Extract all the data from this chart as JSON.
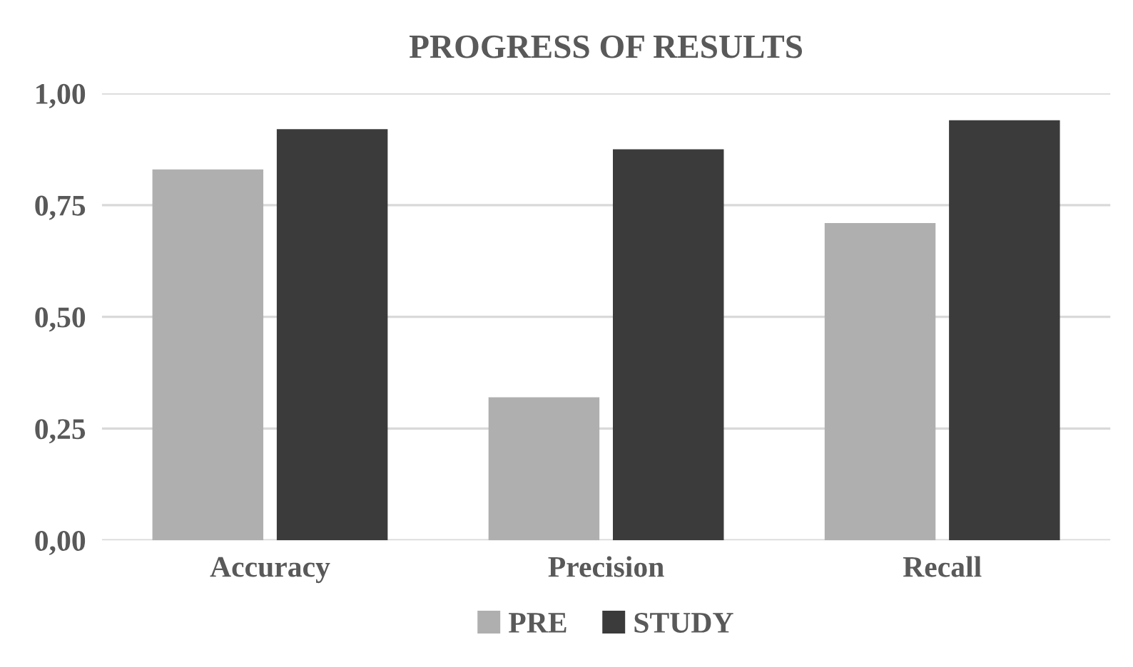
{
  "chart_data": {
    "type": "bar",
    "title": "PROGRESS OF RESULTS",
    "categories": [
      "Accuracy",
      "Precision",
      "Recall"
    ],
    "series": [
      {
        "name": "PRE",
        "color": "#afafaf",
        "values": [
          0.83,
          0.32,
          0.71
        ]
      },
      {
        "name": "STUDY",
        "color": "#3b3b3b",
        "values": [
          0.92,
          0.875,
          0.94
        ]
      }
    ],
    "ylim": [
      0,
      1
    ],
    "yticks": [
      {
        "value": 0,
        "label": "0,00"
      },
      {
        "value": 0.25,
        "label": "0,25"
      },
      {
        "value": 0.5,
        "label": "0,50"
      },
      {
        "value": 0.75,
        "label": "0,75"
      },
      {
        "value": 1,
        "label": "1,00"
      }
    ],
    "grid": "y",
    "legend": "bottom"
  }
}
